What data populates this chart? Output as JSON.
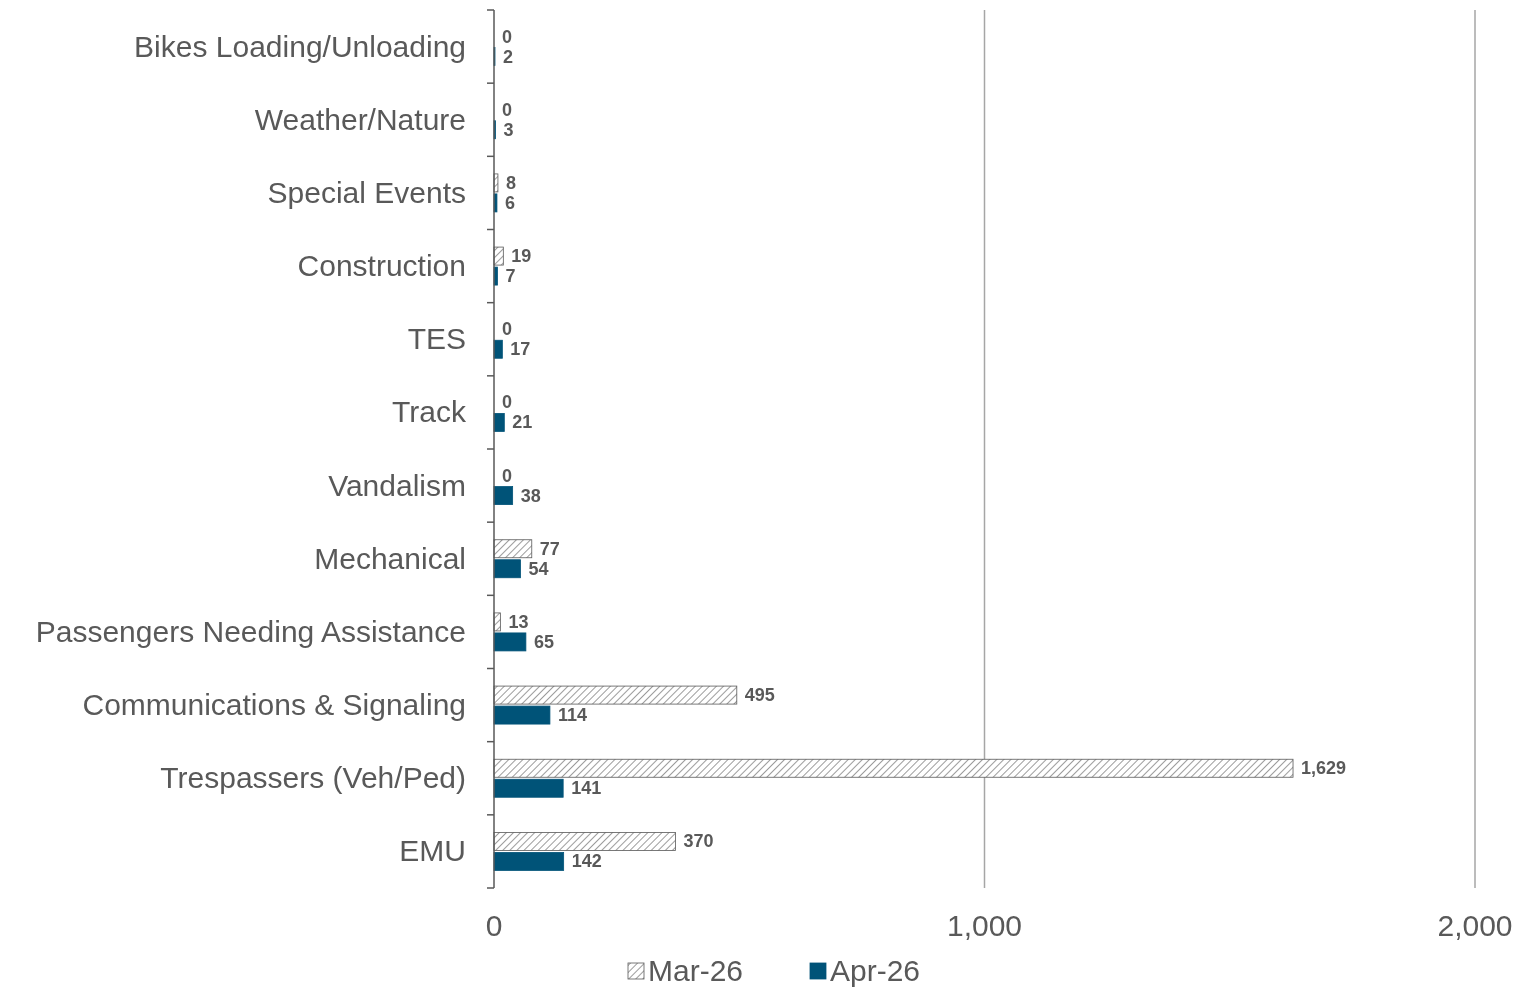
{
  "chart_data": {
    "type": "bar",
    "orientation": "horizontal",
    "categories": [
      "Bikes Loading/Unloading",
      "Weather/Nature",
      "Special Events",
      "Construction",
      "TES",
      "Track",
      "Vandalism",
      "Mechanical",
      "Passengers Needing Assistance",
      "Communications & Signaling",
      "Trespassers (Veh/Ped)",
      "EMU"
    ],
    "series": [
      {
        "name": "Mar-26",
        "color": "#595959",
        "values": [
          0,
          0,
          8,
          19,
          0,
          0,
          0,
          77,
          13,
          495,
          1629,
          370
        ],
        "value_labels": [
          "0",
          "0",
          "8",
          "19",
          "0",
          "0",
          "0",
          "77",
          "13",
          "495",
          "1,629",
          "370"
        ]
      },
      {
        "name": "Apr-26",
        "color": "#005378",
        "values": [
          2,
          3,
          6,
          7,
          17,
          21,
          38,
          54,
          65,
          114,
          141,
          142
        ],
        "value_labels": [
          "2",
          "3",
          "6",
          "7",
          "17",
          "21",
          "38",
          "54",
          "65",
          "114",
          "141",
          "142"
        ]
      }
    ],
    "xlim": [
      0,
      2000
    ],
    "xticks": [
      0,
      {
        "value": 1000,
        "label": "1,000"
      },
      {
        "value": 2000,
        "label": "2,000"
      }
    ],
    "grid": "x",
    "legend": "bottom"
  }
}
